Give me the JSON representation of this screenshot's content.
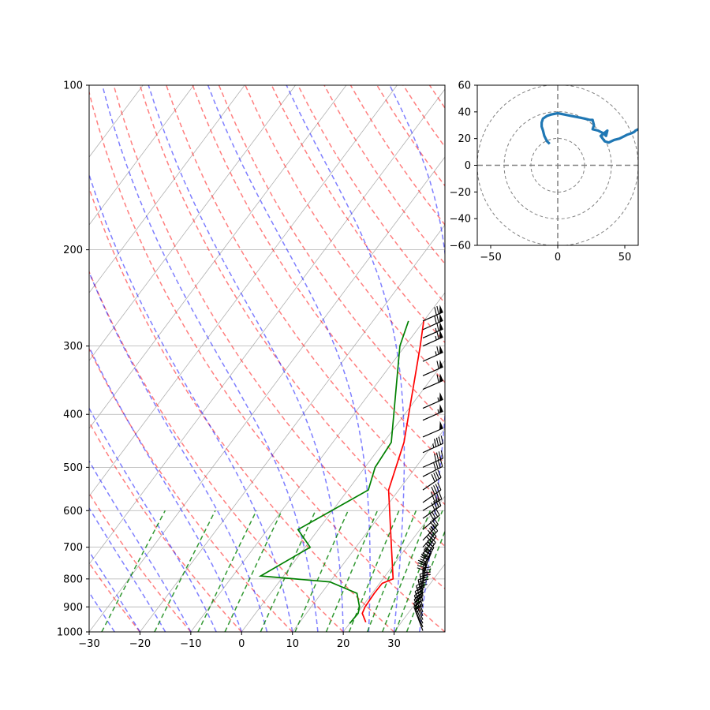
{
  "chart_data": [
    {
      "type": "skew-t",
      "xlim": [
        -30,
        40
      ],
      "ylim": [
        1000,
        100
      ],
      "y_scale": "log",
      "x_ticks": [
        -30,
        -20,
        -10,
        0,
        10,
        20,
        30
      ],
      "y_ticks": [
        100,
        200,
        300,
        400,
        500,
        600,
        700,
        800,
        900,
        1000
      ],
      "grid": true,
      "temperature": {
        "color": "#ff0000",
        "points": [
          [
            23,
            960
          ],
          [
            21,
            925
          ],
          [
            20.6,
            900
          ],
          [
            20.4,
            850
          ],
          [
            20.5,
            815
          ],
          [
            22,
            800
          ],
          [
            17,
            700
          ],
          [
            8,
            550
          ],
          [
            4,
            450
          ],
          [
            -7,
            300
          ],
          [
            -10,
            270
          ]
        ]
      },
      "dewpoint": {
        "color": "#008000",
        "points": [
          [
            20,
            965
          ],
          [
            20.2,
            925
          ],
          [
            19.5,
            900
          ],
          [
            17,
            850
          ],
          [
            10,
            810
          ],
          [
            -4.5,
            790
          ],
          [
            1,
            700
          ],
          [
            -4,
            650
          ],
          [
            4,
            550
          ],
          [
            2,
            500
          ],
          [
            1.5,
            450
          ],
          [
            -11,
            300
          ],
          [
            -13,
            270
          ]
        ]
      },
      "dry_adiabats_color": "#ff0000",
      "moist_adiabats_color": "#0000ff",
      "mixing_ratio_color": "#008000",
      "wind_barbs": [
        {
          "p": 995,
          "u": -6,
          "v": 16
        },
        {
          "p": 980,
          "u": -8,
          "v": 18
        },
        {
          "p": 965,
          "u": -10,
          "v": 22
        },
        {
          "p": 950,
          "u": -11,
          "v": 26
        },
        {
          "p": 935,
          "u": -12,
          "v": 29
        },
        {
          "p": 920,
          "u": -12,
          "v": 32
        },
        {
          "p": 900,
          "u": -11,
          "v": 35
        },
        {
          "p": 880,
          "u": -8,
          "v": 37
        },
        {
          "p": 860,
          "u": -5,
          "v": 38
        },
        {
          "p": 840,
          "u": 0,
          "v": 39
        },
        {
          "p": 820,
          "u": 5,
          "v": 38
        },
        {
          "p": 800,
          "u": 10,
          "v": 37
        },
        {
          "p": 780,
          "u": 15,
          "v": 36
        },
        {
          "p": 760,
          "u": 20,
          "v": 35
        },
        {
          "p": 740,
          "u": 24,
          "v": 34
        },
        {
          "p": 720,
          "u": 26,
          "v": 34
        },
        {
          "p": 700,
          "u": 27,
          "v": 30
        },
        {
          "p": 680,
          "u": 26,
          "v": 27
        },
        {
          "p": 650,
          "u": 30,
          "v": 26
        },
        {
          "p": 620,
          "u": 34,
          "v": 24
        },
        {
          "p": 600,
          "u": 36,
          "v": 22
        },
        {
          "p": 580,
          "u": 37,
          "v": 26
        },
        {
          "p": 550,
          "u": 32,
          "v": 22
        },
        {
          "p": 520,
          "u": 35,
          "v": 18
        },
        {
          "p": 500,
          "u": 38,
          "v": 17
        },
        {
          "p": 470,
          "u": 42,
          "v": 19
        },
        {
          "p": 440,
          "u": 46,
          "v": 20
        },
        {
          "p": 410,
          "u": 50,
          "v": 22
        },
        {
          "p": 390,
          "u": 52,
          "v": 23
        },
        {
          "p": 360,
          "u": 55,
          "v": 24
        },
        {
          "p": 340,
          "u": 57,
          "v": 25
        },
        {
          "p": 320,
          "u": 58,
          "v": 26
        },
        {
          "p": 300,
          "u": 60,
          "v": 27
        },
        {
          "p": 290,
          "u": 61,
          "v": 27
        },
        {
          "p": 280,
          "u": 62,
          "v": 28
        },
        {
          "p": 270,
          "u": 63,
          "v": 28
        }
      ]
    },
    {
      "type": "hodograph",
      "xlim": [
        -60,
        60
      ],
      "ylim": [
        -60,
        60
      ],
      "x_ticks": [
        -50,
        0,
        50
      ],
      "y_ticks": [
        -60,
        -40,
        -20,
        0,
        20,
        40,
        60
      ],
      "rings": [
        20,
        40,
        60
      ],
      "color": "#1f77b4",
      "points": [
        [
          -6,
          16
        ],
        [
          -8,
          18
        ],
        [
          -10,
          22
        ],
        [
          -11,
          26
        ],
        [
          -12,
          29
        ],
        [
          -12,
          32
        ],
        [
          -11,
          35
        ],
        [
          -8,
          37
        ],
        [
          -5,
          38
        ],
        [
          0,
          39
        ],
        [
          5,
          38
        ],
        [
          10,
          37
        ],
        [
          15,
          36
        ],
        [
          20,
          35
        ],
        [
          24,
          34
        ],
        [
          26,
          34
        ],
        [
          27,
          30
        ],
        [
          26,
          27
        ],
        [
          30,
          26
        ],
        [
          34,
          24
        ],
        [
          36,
          22
        ],
        [
          37,
          26
        ],
        [
          32,
          22
        ],
        [
          35,
          18
        ],
        [
          38,
          17
        ],
        [
          42,
          19
        ],
        [
          46,
          20
        ],
        [
          50,
          22
        ],
        [
          52,
          23
        ],
        [
          55,
          24
        ],
        [
          57,
          25
        ],
        [
          58,
          26
        ],
        [
          60,
          27
        ],
        [
          61,
          27
        ],
        [
          62,
          28
        ],
        [
          63,
          28
        ]
      ]
    }
  ]
}
